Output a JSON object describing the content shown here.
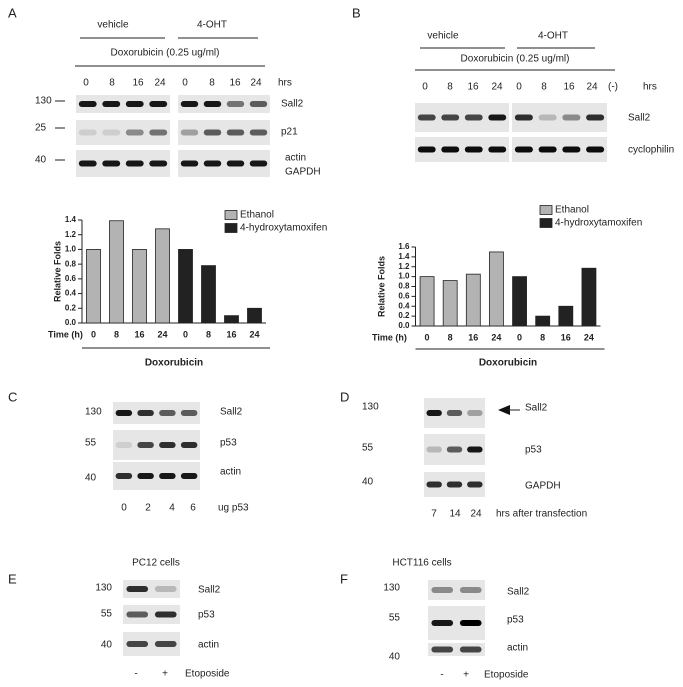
{
  "panels": {
    "A": {
      "letter": "A",
      "groups": [
        "vehicle",
        "4-OHT"
      ],
      "treatment": "Doxorubicin (0.25 ug/ml)",
      "lanes": [
        "0",
        "8",
        "16",
        "24",
        "0",
        "8",
        "16",
        "24"
      ],
      "lane_unit": "hrs",
      "markers": [
        "130",
        "25",
        "40"
      ],
      "bands": [
        "Sall2",
        "p21",
        "actin",
        "GAPDH"
      ]
    },
    "B": {
      "letter": "B",
      "groups": [
        "vehicle",
        "4-OHT"
      ],
      "treatment": "Doxorubicin (0.25 ug/ml)",
      "lanes": [
        "0",
        "8",
        "16",
        "24",
        "0",
        "8",
        "16",
        "24",
        "(-)"
      ],
      "lane_unit": "hrs",
      "bands": [
        "Sall2",
        "cyclophilin"
      ]
    },
    "C": {
      "letter": "C",
      "markers": [
        "130",
        "55",
        "40"
      ],
      "bands": [
        "Sall2",
        "p53",
        "actin"
      ],
      "lanes": [
        "0",
        "2",
        "4",
        "6"
      ],
      "lane_unit": "ug p53"
    },
    "D": {
      "letter": "D",
      "markers": [
        "130",
        "55",
        "40"
      ],
      "bands": [
        "Sall2",
        "p53",
        "GAPDH"
      ],
      "lanes": [
        "7",
        "14",
        "24"
      ],
      "lane_unit": "hrs after transfection"
    },
    "E": {
      "letter": "E",
      "cells": "PC12 cells",
      "markers": [
        "130",
        "55",
        "40"
      ],
      "bands": [
        "Sall2",
        "p53",
        "actin"
      ],
      "lanes": [
        "-",
        "+"
      ],
      "lane_unit": "Etoposide"
    },
    "F": {
      "letter": "F",
      "cells": "HCT116 cells",
      "markers": [
        "130",
        "55",
        "40"
      ],
      "bands": [
        "Sall2",
        "p53",
        "actin"
      ],
      "lanes": [
        "-",
        "+"
      ],
      "lane_unit": "Etoposide"
    }
  },
  "chart_data": [
    {
      "type": "bar",
      "categories": [
        "0",
        "8",
        "16",
        "24",
        "0",
        "8",
        "16",
        "24"
      ],
      "series": [
        {
          "name": "Ethanol",
          "color": "#b3b3b3",
          "values": [
            1.0,
            1.39,
            1.0,
            1.28,
            null,
            null,
            null,
            null
          ]
        },
        {
          "name": "4-hydroxytamoxifen",
          "color": "#222222",
          "values": [
            null,
            null,
            null,
            null,
            1.0,
            0.78,
            0.1,
            0.2
          ]
        }
      ],
      "x_label": "Time (h)",
      "group_label": "Doxorubicin",
      "y_label": "Relative Folds",
      "ylim": [
        0,
        1.4
      ],
      "yticks": [
        {
          "value": 0,
          "label": "0.0"
        },
        0.2,
        0.4,
        0.6,
        0.8,
        {
          "value": 1,
          "label": "1.0"
        },
        1.2,
        1.4
      ]
    },
    {
      "type": "bar",
      "categories": [
        "0",
        "8",
        "16",
        "24",
        "0",
        "8",
        "16",
        "24"
      ],
      "series": [
        {
          "name": "Ethanol",
          "color": "#b3b3b3",
          "values": [
            1.0,
            0.92,
            1.05,
            1.5,
            null,
            null,
            null,
            null
          ]
        },
        {
          "name": "4-hydroxytamoxifen",
          "color": "#222222",
          "values": [
            null,
            null,
            null,
            null,
            1.0,
            0.2,
            0.4,
            1.17
          ]
        }
      ],
      "x_label": "Time (h)",
      "group_label": "Doxorubicin",
      "y_label": "Relative Folds",
      "ylim": [
        0,
        1.6
      ],
      "yticks": [
        {
          "value": 0,
          "label": "0.0"
        },
        0.2,
        0.4,
        0.6,
        0.8,
        {
          "value": 1,
          "label": "1.0"
        },
        1.2,
        1.4,
        1.6
      ]
    }
  ]
}
